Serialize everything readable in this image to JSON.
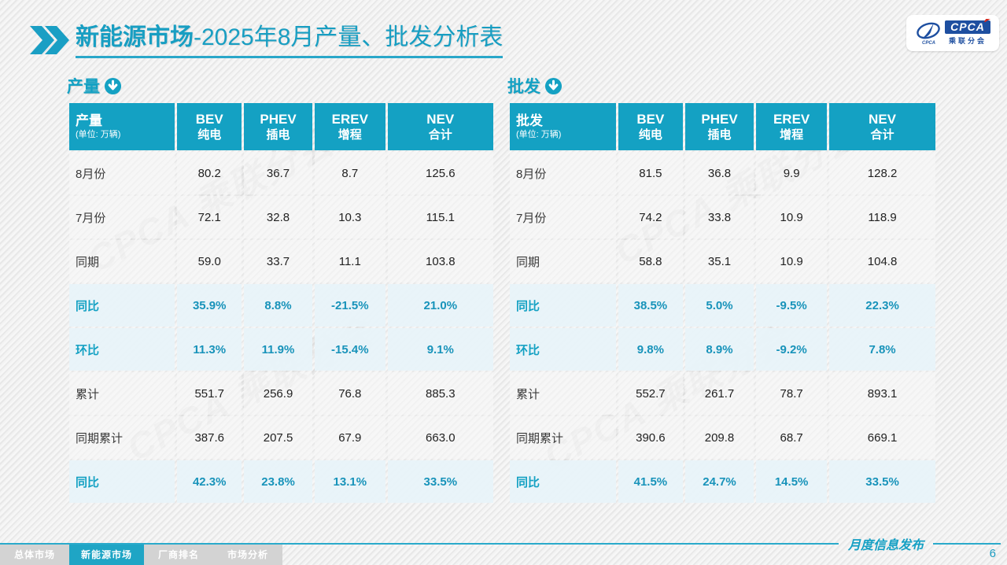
{
  "title": {
    "bold": "新能源市场",
    "rest": "-2025年8月产量、批发分析表"
  },
  "logo": {
    "abbr": "CPCA",
    "name": "乘联分会"
  },
  "watermark_text": "CPCA 乘联分会",
  "colors": {
    "accent": "#14a1c3",
    "highlight_bg": "#e8f3f9",
    "pct_text": "#1893ba",
    "tab_active": "#1fa5c5",
    "tab_inactive": "#d3d3d3"
  },
  "tables": [
    {
      "section_label": "产量",
      "corner": {
        "label": "产量",
        "unit": "(单位: 万辆)"
      },
      "columns": [
        {
          "en": "BEV",
          "zh": "纯电"
        },
        {
          "en": "PHEV",
          "zh": "插电"
        },
        {
          "en": "EREV",
          "zh": "增程"
        },
        {
          "en": "NEV",
          "zh": "合计"
        }
      ],
      "rows": [
        {
          "label": "8月份",
          "type": "normal",
          "values": [
            "80.2",
            "36.7",
            "8.7",
            "125.6"
          ]
        },
        {
          "label": "7月份",
          "type": "normal",
          "values": [
            "72.1",
            "32.8",
            "10.3",
            "115.1"
          ]
        },
        {
          "label": "同期",
          "type": "normal",
          "values": [
            "59.0",
            "33.7",
            "11.1",
            "103.8"
          ]
        },
        {
          "label": "同比",
          "type": "highlight",
          "values": [
            "35.9%",
            "8.8%",
            "-21.5%",
            "21.0%"
          ]
        },
        {
          "label": "环比",
          "type": "highlight",
          "values": [
            "11.3%",
            "11.9%",
            "-15.4%",
            "9.1%"
          ]
        },
        {
          "label": "累计",
          "type": "normal",
          "values": [
            "551.7",
            "256.9",
            "76.8",
            "885.3"
          ]
        },
        {
          "label": "同期累计",
          "type": "normal",
          "values": [
            "387.6",
            "207.5",
            "67.9",
            "663.0"
          ]
        },
        {
          "label": "同比",
          "type": "highlight",
          "values": [
            "42.3%",
            "23.8%",
            "13.1%",
            "33.5%"
          ]
        }
      ]
    },
    {
      "section_label": "批发",
      "corner": {
        "label": "批发",
        "unit": "(单位: 万辆)"
      },
      "columns": [
        {
          "en": "BEV",
          "zh": "纯电"
        },
        {
          "en": "PHEV",
          "zh": "插电"
        },
        {
          "en": "EREV",
          "zh": "增程"
        },
        {
          "en": "NEV",
          "zh": "合计"
        }
      ],
      "rows": [
        {
          "label": "8月份",
          "type": "normal",
          "values": [
            "81.5",
            "36.8",
            "9.9",
            "128.2"
          ]
        },
        {
          "label": "7月份",
          "type": "normal",
          "values": [
            "74.2",
            "33.8",
            "10.9",
            "118.9"
          ]
        },
        {
          "label": "同期",
          "type": "normal",
          "values": [
            "58.8",
            "35.1",
            "10.9",
            "104.8"
          ]
        },
        {
          "label": "同比",
          "type": "highlight",
          "values": [
            "38.5%",
            "5.0%",
            "-9.5%",
            "22.3%"
          ]
        },
        {
          "label": "环比",
          "type": "highlight",
          "values": [
            "9.8%",
            "8.9%",
            "-9.2%",
            "7.8%"
          ]
        },
        {
          "label": "累计",
          "type": "normal",
          "values": [
            "552.7",
            "261.7",
            "78.7",
            "893.1"
          ]
        },
        {
          "label": "同期累计",
          "type": "normal",
          "values": [
            "390.6",
            "209.8",
            "68.7",
            "669.1"
          ]
        },
        {
          "label": "同比",
          "type": "highlight",
          "values": [
            "41.5%",
            "24.7%",
            "14.5%",
            "33.5%"
          ]
        }
      ]
    }
  ],
  "footer": {
    "tabs": [
      {
        "label": "总体市场",
        "active": false
      },
      {
        "label": "新能源市场",
        "active": true
      },
      {
        "label": "厂商排名",
        "active": false
      },
      {
        "label": "市场分析",
        "active": false
      }
    ],
    "note": "月度信息发布",
    "page_number": "6"
  }
}
